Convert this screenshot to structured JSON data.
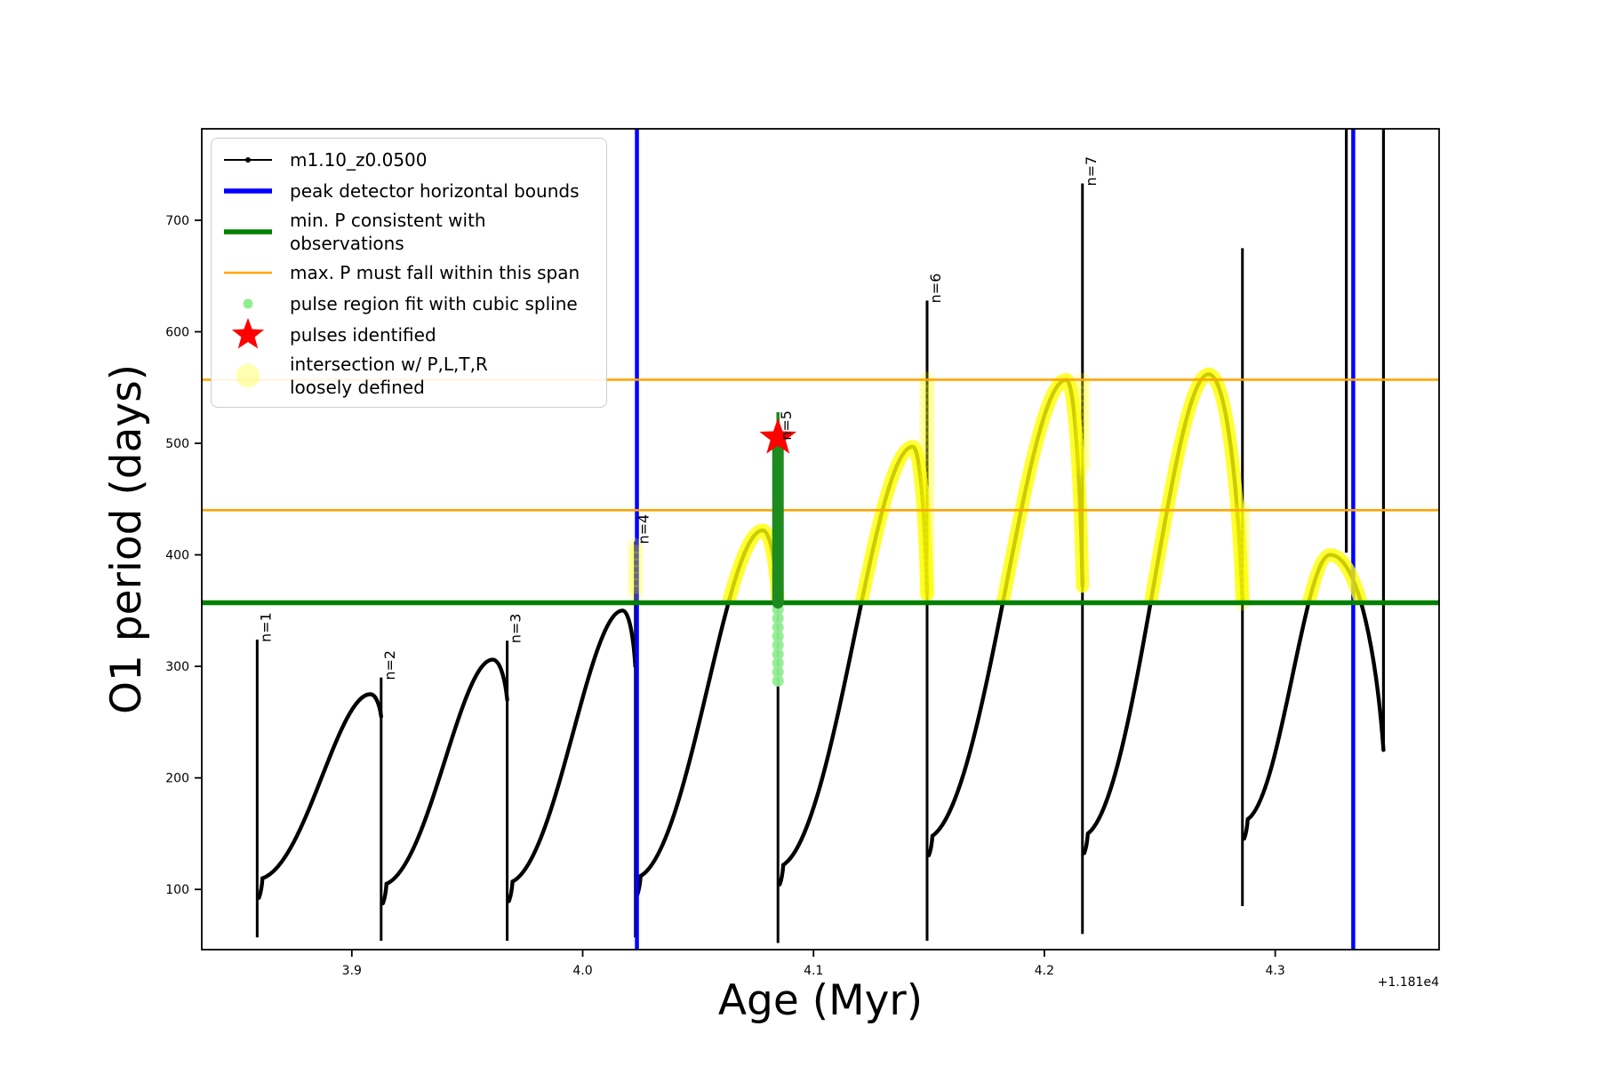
{
  "figure": {
    "background": "#ffffff"
  },
  "axes": {
    "xlabel": "Age (Myr)",
    "ylabel": "O1 period (days)",
    "offset_text": "+1.181e4"
  },
  "legend": {
    "items": [
      {
        "marker": "line-dot",
        "color": "#000000",
        "label": "m1.10_z0.0500"
      },
      {
        "marker": "thick-line",
        "color": "#0000ff",
        "label": "peak detector horizontal bounds"
      },
      {
        "marker": "thick-line",
        "color": "#008000",
        "label": "min. P consistent with observations"
      },
      {
        "marker": "line",
        "color": "#ffa500",
        "label": "max. P must fall within this span"
      },
      {
        "marker": "dot-small",
        "color": "#90ee90",
        "label": "pulse region fit with cubic spline"
      },
      {
        "marker": "star",
        "color": "#ff0000",
        "label": "pulses identified"
      },
      {
        "marker": "dot-large",
        "color": "#ffff00",
        "label": "intersection w/ P,L,T,R\nloosely defined"
      }
    ]
  },
  "chart_data": {
    "type": "line",
    "title": "",
    "xlabel": "Age (Myr)",
    "ylabel": "O1 period (days)",
    "x_offset": "+1.181e4",
    "xlim": [
      3.835,
      4.371
    ],
    "ylim": [
      46,
      782
    ],
    "x_tick_values": [
      3.9,
      4.0,
      4.1,
      4.2,
      4.3
    ],
    "x_tick_labels": [
      "3.9",
      "4.0",
      "4.1",
      "4.2",
      "4.3"
    ],
    "y_tick_values": [
      100,
      200,
      300,
      400,
      500,
      600,
      700
    ],
    "y_tick_labels": [
      "100",
      "200",
      "300",
      "400",
      "500",
      "600",
      "700"
    ],
    "grid": false,
    "legend_position": "upper left",
    "series": [
      {
        "name": "m1.10_z0.0500",
        "color": "#000000",
        "style": "line-with-dot-markers"
      }
    ],
    "reference_lines": {
      "blue_vertical_ages": [
        4.0235,
        4.3338
      ],
      "green_min_period_days": 357,
      "orange_span_days": [
        440,
        557
      ]
    },
    "pulses": [
      {
        "label": "n=1",
        "age": 3.859,
        "top": 324,
        "bottom": 57,
        "hook": 110,
        "peak_age": 3.908,
        "peak": 275,
        "end_age": 3.9127,
        "end": 255
      },
      {
        "label": "n=2",
        "age": 3.9127,
        "top": 290,
        "bottom": 54,
        "hook": 105,
        "peak_age": 3.961,
        "peak": 306,
        "end_age": 3.9673,
        "end": 270
      },
      {
        "label": "n=3",
        "age": 3.9673,
        "top": 323,
        "bottom": 54,
        "hook": 107,
        "peak_age": 4.0173,
        "peak": 350,
        "end_age": 4.0228,
        "end": 300
      },
      {
        "label": "n=4",
        "age": 4.0228,
        "top": 412,
        "bottom": 57,
        "hook": 112,
        "peak_age": 4.078,
        "peak": 422,
        "end_age": 4.0846,
        "end": 357,
        "beads": [
          366,
          412
        ]
      },
      {
        "label": "n=5",
        "age": 4.0846,
        "top": 505,
        "bottom": 52,
        "hook": 122,
        "peak_age": 4.143,
        "peak": 497,
        "end_age": 4.1492,
        "end": 365
      },
      {
        "label": "n=6",
        "age": 4.1492,
        "top": 628,
        "bottom": 54,
        "hook": 148,
        "peak_age": 4.2095,
        "peak": 557,
        "end_age": 4.2165,
        "end": 372,
        "beads": [
          365,
          557
        ]
      },
      {
        "label": "n=7",
        "age": 4.2165,
        "top": 733,
        "bottom": 60,
        "hook": 150,
        "peak_age": 4.2712,
        "peak": 562,
        "end_age": 4.2858,
        "end": 360,
        "beads": [
          478,
          557
        ]
      },
      {
        "label": "",
        "age": 4.2858,
        "top": 675,
        "bottom": 85,
        "hook": 163,
        "peak_age": 4.3238,
        "peak": 400,
        "end_age": 4.3469,
        "end": 225,
        "beads": [
          357,
          445
        ]
      }
    ],
    "tail_verticals": [
      {
        "age": 4.3308,
        "bottom": 402
      },
      {
        "age": 4.3469,
        "bottom": 225
      }
    ],
    "pulse_fit": {
      "age": 4.0846,
      "region_days": [
        357,
        500
      ],
      "spur_days": [
        500,
        528
      ],
      "spline_dots_days": [
        287,
        352
      ]
    },
    "identified_pulse": {
      "age": 4.0846,
      "period_days": 505
    },
    "colors": {
      "curve": "#000000",
      "blue": "#0000ff",
      "green": "#008000",
      "orange": "#ffa500",
      "highlight": "#ffff00",
      "spline_fit": "#90ee90",
      "pulse_region": "#1e8b1e",
      "star": "#ff0000"
    }
  }
}
